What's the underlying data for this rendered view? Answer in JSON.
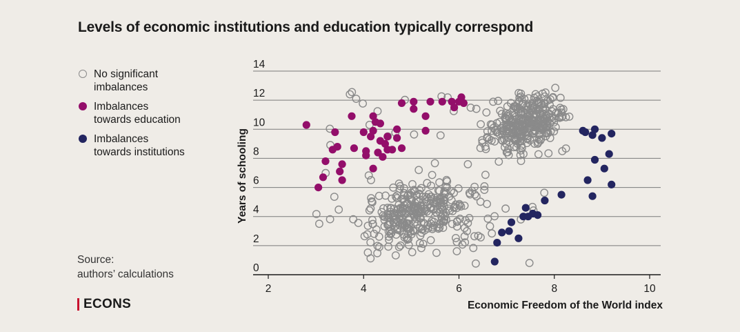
{
  "title": "Levels of economic institutions and education typically correspond",
  "legend": [
    {
      "label": "No significant\nimbalances",
      "color": "#8a8a8a",
      "filled": false
    },
    {
      "label": "Imbalances\ntowards education",
      "color": "#930e6a",
      "filled": true
    },
    {
      "label": "Imbalances\ntowards institutions",
      "color": "#232560",
      "filled": true
    }
  ],
  "source": {
    "line1": "Source:",
    "line2": "authors’ calculations"
  },
  "logo": "ECONS",
  "chart_data": {
    "type": "scatter",
    "xlabel": "Economic Freedom of the World index",
    "ylabel": "Years of schooling",
    "xlim": [
      1.8,
      10.2
    ],
    "ylim": [
      0,
      14
    ],
    "xticks": [
      "2",
      "4",
      "6",
      "8",
      "10"
    ],
    "yticks": [
      "0",
      "2",
      "4",
      "6",
      "8",
      "10",
      "12",
      "14"
    ],
    "grid": "horizontal",
    "legend_position": "left",
    "series": [
      {
        "name": "Imbalances towards education",
        "color": "#930e6a",
        "points": [
          [
            2.8,
            10.3
          ],
          [
            3.05,
            6.0
          ],
          [
            3.15,
            6.7
          ],
          [
            3.2,
            7.8
          ],
          [
            3.35,
            8.6
          ],
          [
            3.4,
            9.8
          ],
          [
            3.45,
            8.8
          ],
          [
            3.5,
            7.1
          ],
          [
            3.55,
            7.6
          ],
          [
            3.55,
            6.5
          ],
          [
            3.75,
            10.9
          ],
          [
            3.8,
            8.7
          ],
          [
            4.0,
            9.8
          ],
          [
            4.05,
            8.2
          ],
          [
            4.05,
            8.5
          ],
          [
            4.15,
            9.5
          ],
          [
            4.2,
            7.3
          ],
          [
            4.2,
            9.9
          ],
          [
            4.2,
            10.9
          ],
          [
            4.25,
            10.5
          ],
          [
            4.3,
            8.4
          ],
          [
            4.35,
            10.4
          ],
          [
            4.35,
            9.2
          ],
          [
            4.4,
            8.1
          ],
          [
            4.45,
            9.0
          ],
          [
            4.5,
            8.6
          ],
          [
            4.5,
            9.5
          ],
          [
            4.6,
            8.6
          ],
          [
            4.7,
            10.0
          ],
          [
            4.7,
            9.4
          ],
          [
            4.8,
            8.7
          ],
          [
            4.8,
            11.8
          ],
          [
            5.05,
            11.9
          ],
          [
            5.05,
            11.4
          ],
          [
            5.3,
            10.9
          ],
          [
            5.3,
            9.9
          ],
          [
            5.4,
            11.9
          ],
          [
            5.65,
            11.9
          ],
          [
            5.85,
            11.9
          ],
          [
            5.9,
            11.5
          ],
          [
            6.0,
            11.9
          ],
          [
            6.05,
            12.2
          ],
          [
            6.1,
            11.8
          ]
        ]
      },
      {
        "name": "Imbalances towards institutions",
        "color": "#232560",
        "points": [
          [
            6.75,
            0.9
          ],
          [
            6.8,
            2.2
          ],
          [
            6.9,
            2.9
          ],
          [
            7.05,
            3.0
          ],
          [
            7.1,
            3.6
          ],
          [
            7.25,
            2.5
          ],
          [
            7.35,
            4.0
          ],
          [
            7.4,
            4.6
          ],
          [
            7.45,
            4.0
          ],
          [
            7.55,
            4.2
          ],
          [
            7.65,
            4.1
          ],
          [
            7.8,
            5.1
          ],
          [
            8.15,
            5.5
          ],
          [
            8.65,
            9.8
          ],
          [
            8.7,
            6.5
          ],
          [
            8.8,
            5.4
          ],
          [
            8.8,
            9.6
          ],
          [
            8.85,
            7.9
          ],
          [
            8.85,
            10.0
          ],
          [
            9.0,
            9.4
          ],
          [
            9.05,
            7.3
          ],
          [
            9.15,
            8.3
          ],
          [
            9.2,
            9.7
          ],
          [
            9.2,
            6.2
          ],
          [
            8.6,
            9.9
          ]
        ]
      }
    ],
    "series_no_imbalance_count": 700,
    "series_no_imbalance_color": "#8a8a8a"
  }
}
